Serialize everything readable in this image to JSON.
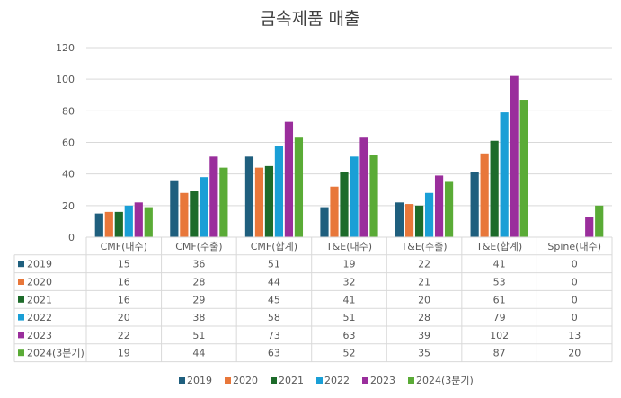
{
  "chart_data": {
    "type": "bar",
    "title": "금속제품 매출",
    "categories": [
      "CMF(내수)",
      "CMF(수출)",
      "CMF(합계)",
      "T&E(내수)",
      "T&E(수출)",
      "T&E(합계)",
      "Spine(내수)"
    ],
    "series": [
      {
        "name": "2019",
        "color": "#1f5f7e",
        "values": [
          15,
          36,
          51,
          19,
          22,
          41,
          0
        ]
      },
      {
        "name": "2020",
        "color": "#e8773a",
        "values": [
          16,
          28,
          44,
          32,
          21,
          53,
          0
        ]
      },
      {
        "name": "2021",
        "color": "#1d6b2a",
        "values": [
          16,
          29,
          45,
          41,
          20,
          61,
          0
        ]
      },
      {
        "name": "2022",
        "color": "#1a9fd6",
        "values": [
          20,
          38,
          58,
          51,
          28,
          79,
          0
        ]
      },
      {
        "name": "2023",
        "color": "#9a2e9c",
        "values": [
          22,
          51,
          73,
          63,
          39,
          102,
          13
        ]
      },
      {
        "name": "2024(3분기)",
        "color": "#5aab36",
        "values": [
          19,
          44,
          63,
          52,
          35,
          87,
          20
        ]
      }
    ],
    "ylim": [
      0,
      120
    ],
    "yticks": [
      0,
      20,
      40,
      60,
      80,
      100,
      120
    ],
    "grid": true,
    "data_table": true,
    "legend_position": "bottom"
  }
}
